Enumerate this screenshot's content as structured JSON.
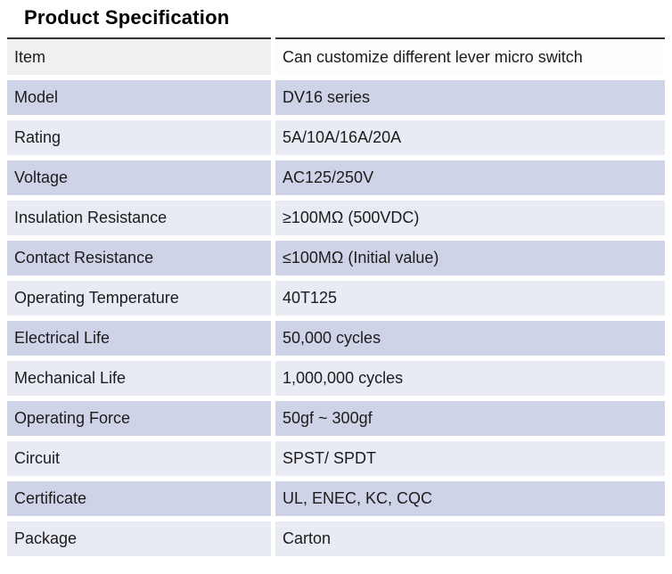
{
  "page": {
    "title": "Product Specification"
  },
  "colors": {
    "row_medium_lavender": "#cfd3e7",
    "row_light_lavender": "#e9ebf4",
    "header_label_bg": "#f0f0ee",
    "header_value_bg": "#fdfdfd",
    "top_rule": "#333333",
    "text": "#1c1c1c"
  },
  "table": {
    "rows": [
      {
        "label": "Item",
        "value": "Can customize different lever micro switch"
      },
      {
        "label": "Model",
        "value": "DV16 series"
      },
      {
        "label": "Rating",
        "value": "5A/10A/16A/20A"
      },
      {
        "label": "Voltage",
        "value": "AC125/250V"
      },
      {
        "label": "Insulation Resistance",
        "value": "≥100MΩ (500VDC)"
      },
      {
        "label": "Contact Resistance",
        "value": "≤100MΩ (Initial value)"
      },
      {
        "label": "Operating Temperature",
        "value": "40T125"
      },
      {
        "label": "Electrical Life",
        "value": "50,000 cycles"
      },
      {
        "label": "Mechanical Life",
        "value": "1,000,000 cycles"
      },
      {
        "label": "Operating Force",
        "value": "50gf ~ 300gf"
      },
      {
        "label": "Circuit",
        "value": "SPST/ SPDT"
      },
      {
        "label": "Certificate",
        "value": "UL, ENEC, KC, CQC"
      },
      {
        "label": "Package",
        "value": "Carton"
      }
    ]
  }
}
